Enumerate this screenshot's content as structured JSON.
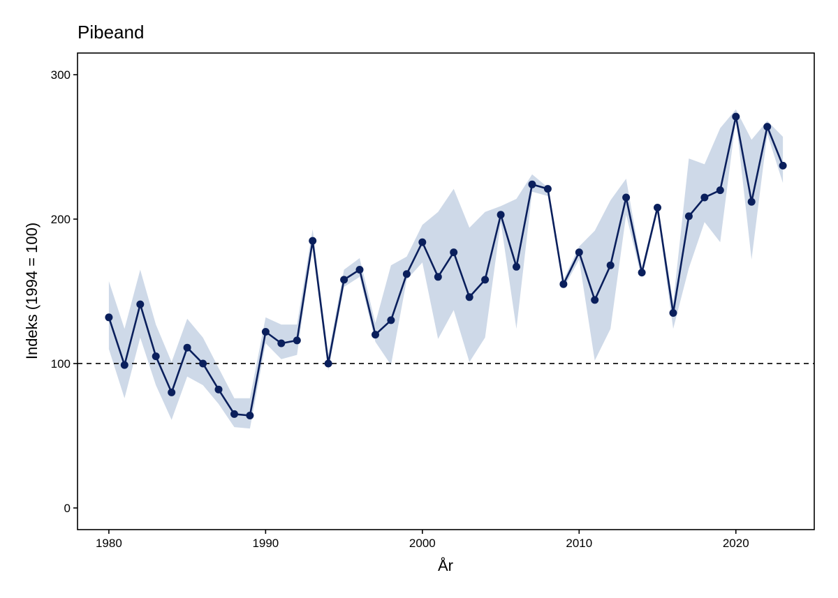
{
  "chart_data": {
    "type": "line",
    "title": "Pibeand",
    "xlabel": "År",
    "ylabel": "Indeks (1994 = 100)",
    "xlim": [
      1978,
      2025
    ],
    "ylim": [
      -15,
      315
    ],
    "x_ticks": [
      1980,
      1990,
      2000,
      2010,
      2020
    ],
    "y_ticks": [
      0,
      100,
      200,
      300
    ],
    "x_tick_labels": [
      "1980",
      "1990",
      "2000",
      "2010",
      "2020"
    ],
    "y_tick_labels": [
      "0",
      "100",
      "200",
      "300"
    ],
    "reference_line": {
      "y": 100,
      "style": "dashed"
    },
    "grid": false,
    "legend": "none",
    "colors": {
      "line": "#0a1f5c",
      "band": "#ced9e8",
      "reference": "#000000"
    },
    "series": [
      {
        "x": [
          1980,
          1981,
          1982,
          1983,
          1984,
          1985,
          1986,
          1987,
          1988,
          1989,
          1990,
          1991,
          1992,
          1993,
          1994,
          1995,
          1996,
          1997,
          1998,
          1999,
          2000,
          2001,
          2002,
          2003,
          2004,
          2005,
          2006,
          2007,
          2008,
          2009,
          2010,
          2011,
          2012,
          2013,
          2014,
          2015,
          2016,
          2017,
          2018,
          2019,
          2020,
          2021,
          2022,
          2023
        ],
        "values": [
          132,
          99,
          141,
          105,
          80,
          111,
          100,
          82,
          65,
          64,
          122,
          114,
          116,
          185,
          100,
          158,
          165,
          120,
          130,
          162,
          184,
          160,
          177,
          146,
          158,
          203,
          167,
          224,
          221,
          155,
          177,
          144,
          168,
          215,
          163,
          208,
          135,
          202,
          215,
          220,
          271,
          212,
          264,
          237
        ],
        "lower": [
          110,
          76,
          118,
          85,
          61,
          91,
          85,
          72,
          56,
          55,
          114,
          103,
          106,
          183,
          95,
          153,
          160,
          115,
          99,
          158,
          170,
          117,
          137,
          101,
          118,
          198,
          124,
          219,
          216,
          152,
          172,
          102,
          124,
          203,
          159,
          205,
          124,
          166,
          198,
          184,
          269,
          172,
          259,
          225
        ],
        "upper": [
          157,
          124,
          165,
          127,
          101,
          131,
          118,
          97,
          76,
          76,
          132,
          127,
          127,
          193,
          106,
          165,
          173,
          128,
          168,
          174,
          196,
          205,
          221,
          194,
          205,
          209,
          214,
          231,
          222,
          158,
          181,
          192,
          213,
          228,
          166,
          211,
          142,
          242,
          238,
          263,
          276,
          255,
          268,
          257
        ]
      }
    ]
  }
}
